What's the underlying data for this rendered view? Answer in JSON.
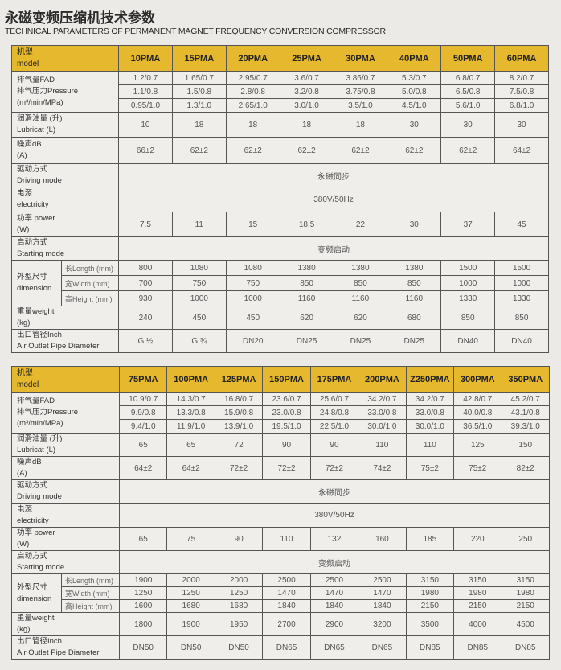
{
  "title_cn": "永磁变频压缩机技术参数",
  "title_en": "TECHNICAL PARAMETERS OF PERMANENT MAGNET FREQUENCY CONVERSION COMPRESSOR",
  "header_color": "#e5b82e",
  "labels": {
    "model": [
      "机型",
      "model"
    ],
    "fad": [
      "排气量FAD",
      "排气压力Pressure",
      "(m³/min/MPa)"
    ],
    "lubricat": [
      "润滑油量 (升)",
      "Lubricat (L)"
    ],
    "noise": [
      "噪声dB",
      "(A)"
    ],
    "driving": [
      "驱动方式",
      "Driving mode"
    ],
    "electricity": [
      "电源",
      "electricity"
    ],
    "power": [
      "功率 power",
      "(W)"
    ],
    "starting": [
      "启动方式",
      "Starting mode"
    ],
    "dimension": [
      "外型尺寸",
      "dimension"
    ],
    "dim_sub": [
      "长Length (mm)",
      "宽Width (mm)",
      "高Height (mm)"
    ],
    "weight": [
      "重量weight",
      "(kg)"
    ],
    "outlet": [
      "出口管径Inch",
      "Air Outlet Pipe Diameter"
    ]
  },
  "tables": [
    {
      "models": [
        "10PMA",
        "15PMA",
        "20PMA",
        "25PMA",
        "30PMA",
        "40PMA",
        "50PMA",
        "60PMA"
      ],
      "fad": [
        [
          "1.2/0.7",
          "1.65/0.7",
          "2.95/0.7",
          "3.6/0.7",
          "3.86/0.7",
          "5.3/0.7",
          "6.8/0.7",
          "8.2/0.7"
        ],
        [
          "1.1/0.8",
          "1.5/0.8",
          "2.8/0.8",
          "3.2/0.8",
          "3.75/0.8",
          "5.0/0.8",
          "6.5/0.8",
          "7.5/0.8"
        ],
        [
          "0.95/1.0",
          "1.3/1.0",
          "2.65/1.0",
          "3.0/1.0",
          "3.5/1.0",
          "4.5/1.0",
          "5.6/1.0",
          "6.8/1.0"
        ]
      ],
      "lubricat": [
        "10",
        "18",
        "18",
        "18",
        "18",
        "30",
        "30",
        "30"
      ],
      "noise": [
        "66±2",
        "62±2",
        "62±2",
        "62±2",
        "62±2",
        "62±2",
        "62±2",
        "64±2"
      ],
      "driving": "永磁同步",
      "electricity": "380V/50Hz",
      "power": [
        "7.5",
        "11",
        "15",
        "18.5",
        "22",
        "30",
        "37",
        "45"
      ],
      "starting": "变频启动",
      "dims": [
        [
          "800",
          "1080",
          "1080",
          "1380",
          "1380",
          "1380",
          "1500",
          "1500"
        ],
        [
          "700",
          "750",
          "750",
          "850",
          "850",
          "850",
          "1000",
          "1000"
        ],
        [
          "930",
          "1000",
          "1000",
          "1160",
          "1160",
          "1160",
          "1330",
          "1330"
        ]
      ],
      "weight": [
        "240",
        "450",
        "450",
        "620",
        "620",
        "680",
        "850",
        "850"
      ],
      "outlet": [
        "G ½",
        "G ¾",
        "DN20",
        "DN25",
        "DN25",
        "DN25",
        "DN40",
        "DN40"
      ]
    },
    {
      "models": [
        "75PMA",
        "100PMA",
        "125PMA",
        "150PMA",
        "175PMA",
        "200PMA",
        "Z250PMA",
        "300PMA",
        "350PMA"
      ],
      "fad": [
        [
          "10.9/0.7",
          "14.3/0.7",
          "16.8/0.7",
          "23.6/0.7",
          "25.6/0.7",
          "34.2/0.7",
          "34.2/0.7",
          "42.8/0.7",
          "45.2/0.7"
        ],
        [
          "9.9/0.8",
          "13.3/0.8",
          "15.9/0.8",
          "23.0/0.8",
          "24.8/0.8",
          "33.0/0.8",
          "33.0/0.8",
          "40.0/0.8",
          "43.1/0.8"
        ],
        [
          "9.4/1.0",
          "11.9/1.0",
          "13.9/1.0",
          "19.5/1.0",
          "22.5/1.0",
          "30.0/1.0",
          "30.0/1.0",
          "36.5/1.0",
          "39.3/1.0"
        ]
      ],
      "lubricat": [
        "65",
        "65",
        "72",
        "90",
        "90",
        "110",
        "110",
        "125",
        "150"
      ],
      "noise": [
        "64±2",
        "64±2",
        "72±2",
        "72±2",
        "72±2",
        "74±2",
        "75±2",
        "75±2",
        "82±2"
      ],
      "driving": "永磁同步",
      "electricity": "380V/50Hz",
      "power": [
        "65",
        "75",
        "90",
        "110",
        "132",
        "160",
        "185",
        "220",
        "250"
      ],
      "starting": "变频启动",
      "dims": [
        [
          "1900",
          "2000",
          "2000",
          "2500",
          "2500",
          "2500",
          "3150",
          "3150",
          "3150"
        ],
        [
          "1250",
          "1250",
          "1250",
          "1470",
          "1470",
          "1470",
          "1980",
          "1980",
          "1980"
        ],
        [
          "1600",
          "1680",
          "1680",
          "1840",
          "1840",
          "1840",
          "2150",
          "2150",
          "2150"
        ]
      ],
      "weight": [
        "1800",
        "1900",
        "1950",
        "2700",
        "2900",
        "3200",
        "3500",
        "4000",
        "4500"
      ],
      "outlet": [
        "DN50",
        "DN50",
        "DN50",
        "DN65",
        "DN65",
        "DN65",
        "DN85",
        "DN85",
        "DN85"
      ]
    }
  ]
}
